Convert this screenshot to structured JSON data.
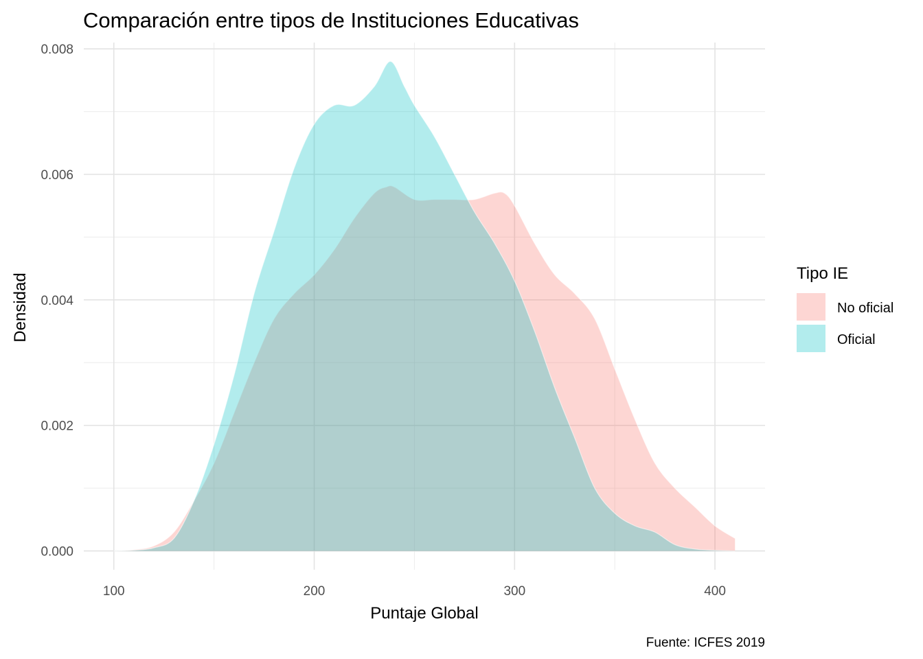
{
  "chart_data": {
    "type": "area",
    "title": "Comparación entre tipos de Instituciones Educativas",
    "xlabel": "Puntaje Global",
    "ylabel": "Densidad",
    "caption": "Fuente: ICFES 2019",
    "xlim": [
      85,
      425
    ],
    "ylim": [
      -0.0003,
      0.0081
    ],
    "x_ticks": [
      100,
      200,
      300,
      400
    ],
    "x_tick_labels": [
      "100",
      "200",
      "300",
      "400"
    ],
    "y_ticks": [
      0.0,
      0.002,
      0.004,
      0.006,
      0.008
    ],
    "y_tick_labels": [
      "0.000",
      "0.002",
      "0.004",
      "0.006",
      "0.008"
    ],
    "grid": true,
    "legend": {
      "title": "Tipo IE",
      "placement": "right",
      "entries": [
        "No oficial",
        "Oficial"
      ]
    },
    "series": [
      {
        "name": "No oficial",
        "color": "#F8766D",
        "fill_opacity": 0.3,
        "x": [
          100,
          110,
          120,
          130,
          140,
          150,
          160,
          170,
          180,
          190,
          200,
          210,
          220,
          230,
          236,
          240,
          250,
          260,
          270,
          280,
          290,
          295,
          300,
          310,
          320,
          330,
          340,
          350,
          360,
          370,
          380,
          390,
          400,
          410
        ],
        "y": [
          0.0,
          2e-05,
          8e-05,
          0.0003,
          0.0008,
          0.0014,
          0.0022,
          0.003,
          0.0037,
          0.0041,
          0.0044,
          0.0048,
          0.0053,
          0.0057,
          0.0058,
          0.0058,
          0.0056,
          0.0056,
          0.0056,
          0.0056,
          0.0057,
          0.0057,
          0.0055,
          0.0049,
          0.0044,
          0.0041,
          0.0037,
          0.0029,
          0.0021,
          0.0014,
          0.001,
          0.0007,
          0.0004,
          0.0002
        ]
      },
      {
        "name": "Oficial",
        "color": "#00BFC4",
        "fill_opacity": 0.3,
        "x": [
          100,
          110,
          120,
          130,
          140,
          150,
          160,
          170,
          180,
          190,
          200,
          210,
          220,
          230,
          238,
          245,
          250,
          260,
          270,
          280,
          290,
          300,
          310,
          320,
          330,
          340,
          350,
          360,
          370,
          380,
          390,
          400,
          410
        ],
        "y": [
          0.0,
          1e-05,
          5e-05,
          0.0002,
          0.0008,
          0.0017,
          0.0028,
          0.0041,
          0.0051,
          0.0061,
          0.0068,
          0.0071,
          0.0071,
          0.0074,
          0.0078,
          0.0074,
          0.0071,
          0.0066,
          0.006,
          0.0054,
          0.0049,
          0.0043,
          0.0035,
          0.0026,
          0.0018,
          0.001,
          0.0006,
          0.0004,
          0.0003,
          0.0001,
          3e-05,
          1e-05,
          0.0
        ]
      }
    ]
  }
}
